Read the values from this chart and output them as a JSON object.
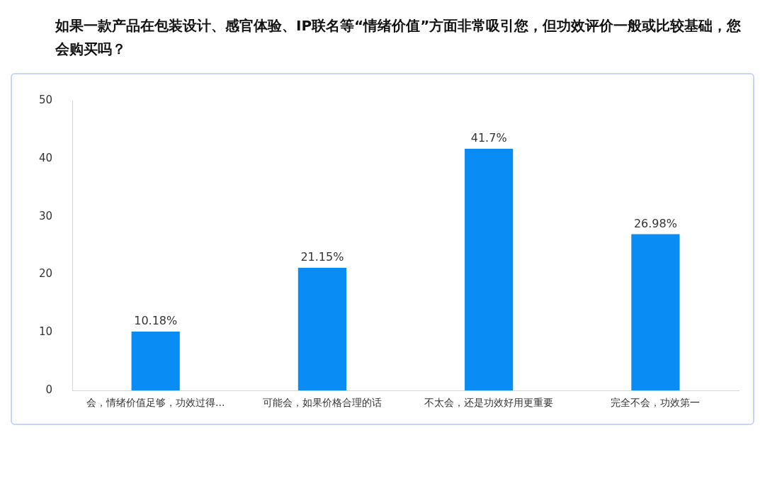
{
  "chart_data": {
    "type": "bar",
    "title": "如果一款产品在包装设计、感官体验、IP联名等“情绪价值”方面非常吸引您，但功效评价一般或比较基础，您会购买吗？",
    "categories": [
      "会，情绪价值足够，功效过得...",
      "可能会，如果价格合理的话",
      "不太会，还是功效好用更重要",
      "完全不会，功效第一"
    ],
    "values": [
      10.18,
      21.15,
      41.7,
      26.98
    ],
    "value_labels": [
      "10.18%",
      "21.15%",
      "41.7%",
      "26.98%"
    ],
    "color": "#0a8cf5",
    "ylim": [
      0,
      50
    ],
    "yticks": [
      0,
      10,
      20,
      30,
      40,
      50
    ]
  }
}
